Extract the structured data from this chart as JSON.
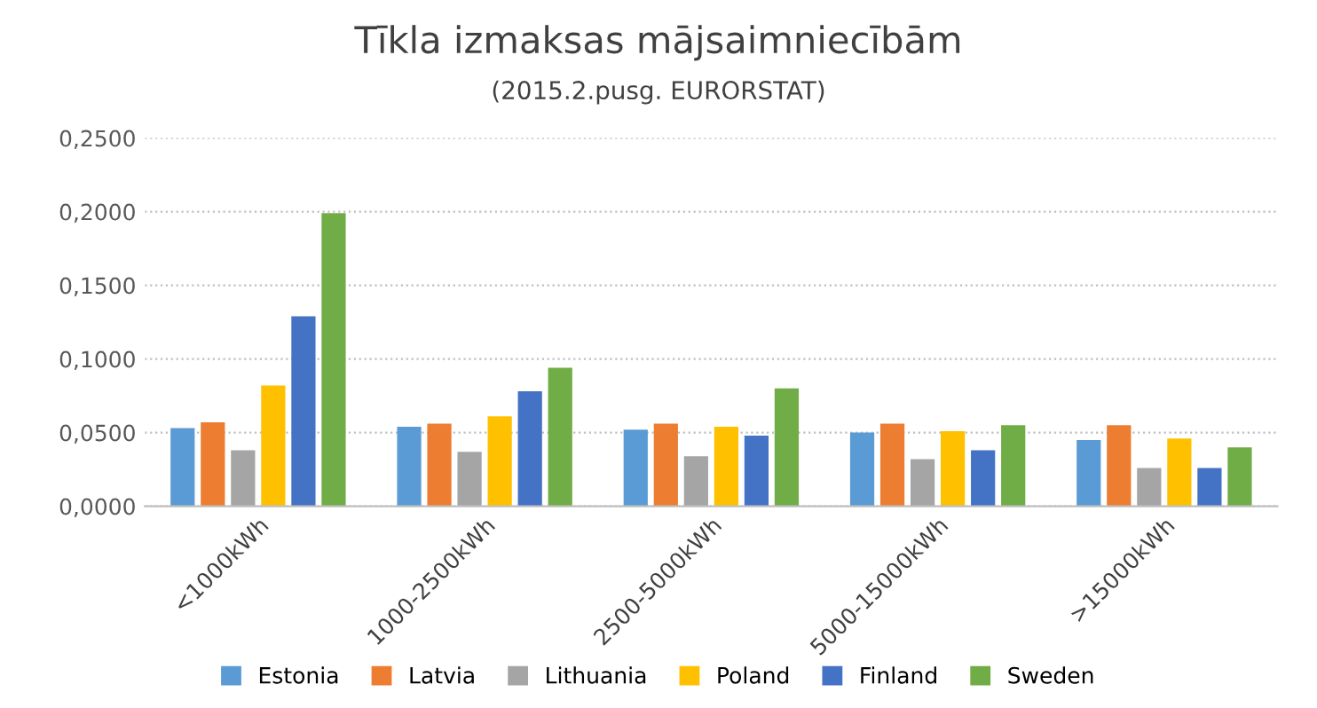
{
  "chart_data": {
    "type": "bar",
    "title": "Tīkla izmaksas mājsaimniecībām",
    "subtitle": "(2015.2.pusg. EURORSTAT)",
    "categories": [
      "<1000kWh",
      "1000-2500kWh",
      "2500-5000kWh",
      "5000-15000kWh",
      ">15000kWh"
    ],
    "series": [
      {
        "name": "Estonia",
        "color": "#5b9bd5",
        "values": [
          0.053,
          0.054,
          0.052,
          0.05,
          0.045
        ]
      },
      {
        "name": "Latvia",
        "color": "#ed7d31",
        "values": [
          0.057,
          0.056,
          0.056,
          0.056,
          0.055
        ]
      },
      {
        "name": "Lithuania",
        "color": "#a5a5a5",
        "values": [
          0.038,
          0.037,
          0.034,
          0.032,
          0.026
        ]
      },
      {
        "name": "Poland",
        "color": "#ffc000",
        "values": [
          0.082,
          0.061,
          0.054,
          0.051,
          0.046
        ]
      },
      {
        "name": "Finland",
        "color": "#4472c4",
        "values": [
          0.129,
          0.078,
          0.048,
          0.038,
          0.026
        ]
      },
      {
        "name": "Sweden",
        "color": "#70ad47",
        "values": [
          0.199,
          0.094,
          0.08,
          0.055,
          0.04
        ]
      }
    ],
    "ylim": [
      0,
      0.25
    ],
    "yticks": [
      {
        "value": 0,
        "label": "0,0000"
      },
      {
        "value": 0.05,
        "label": "0,0500"
      },
      {
        "value": 0.1,
        "label": "0,1000"
      },
      {
        "value": 0.15,
        "label": "0,1500"
      },
      {
        "value": 0.2,
        "label": "0,2000"
      },
      {
        "value": 0.25,
        "label": "0,2500"
      }
    ],
    "grid": "y",
    "legend": "bottom"
  }
}
